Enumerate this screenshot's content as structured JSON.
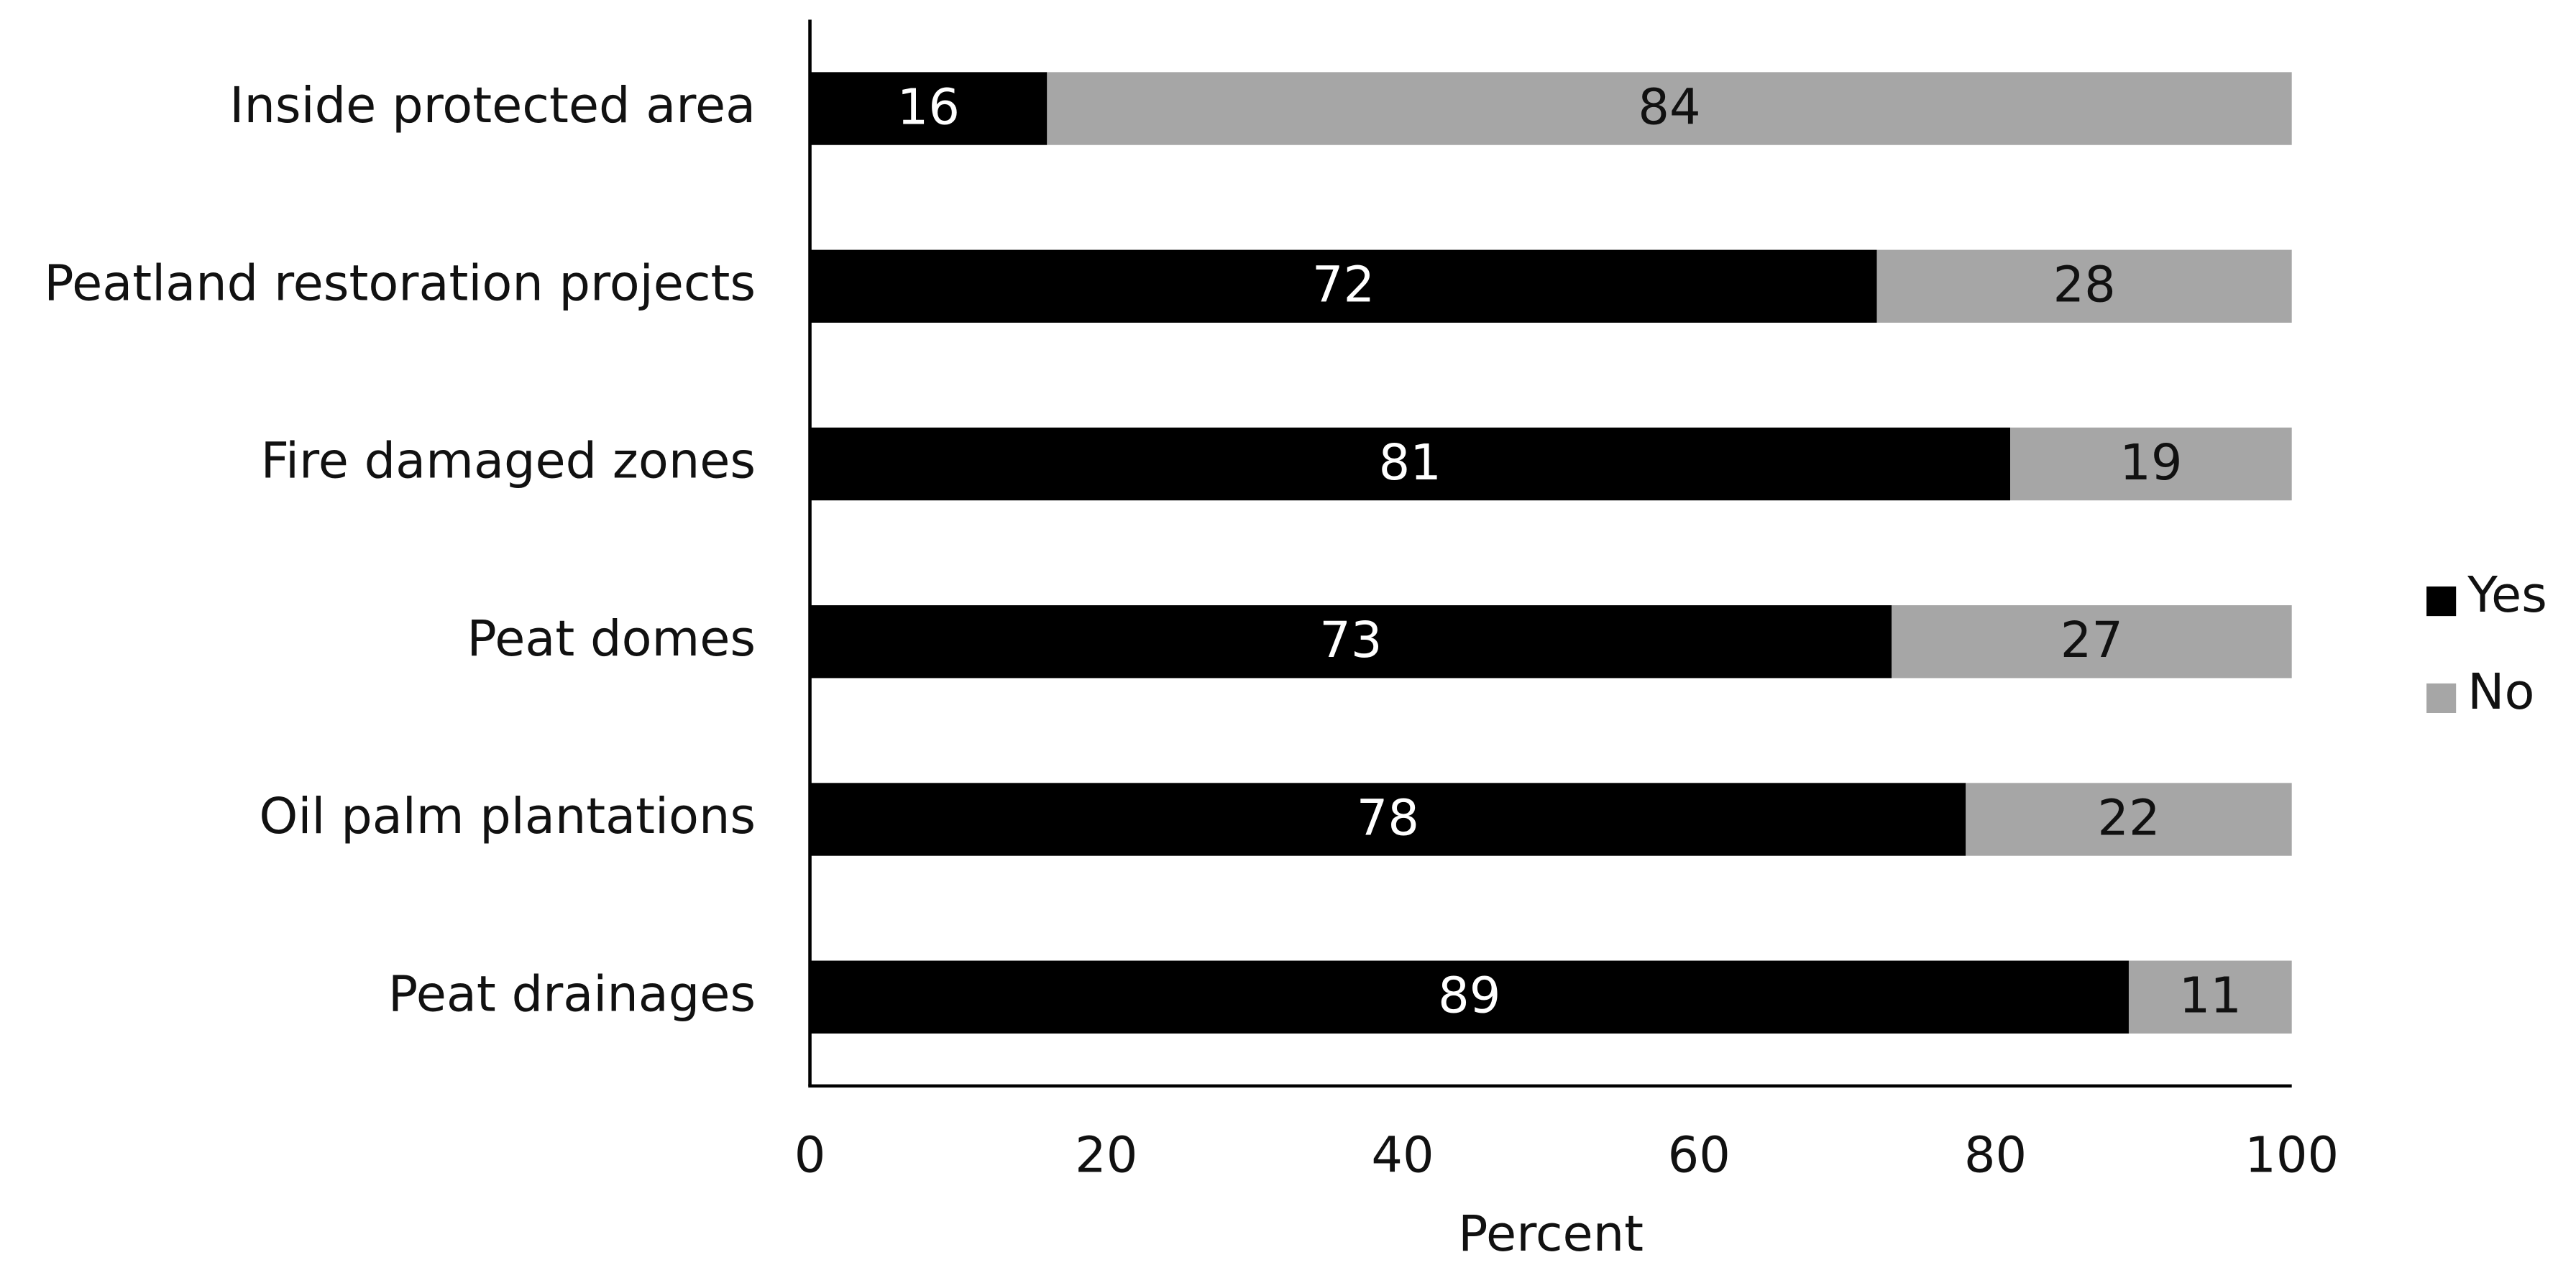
{
  "chart_data": {
    "type": "bar",
    "orientation": "horizontal",
    "stacked": true,
    "categories": [
      "Inside protected area",
      "Peatland restoration projects",
      "Fire damaged zones",
      "Peat domes",
      "Oil palm plantations",
      "Peat drainages"
    ],
    "series": [
      {
        "name": "Yes",
        "color": "#000000",
        "values": [
          16,
          72,
          81,
          73,
          78,
          89
        ]
      },
      {
        "name": "No",
        "color": "#a6a6a6",
        "values": [
          84,
          28,
          19,
          27,
          22,
          11
        ]
      }
    ],
    "x_label": "Percent",
    "xlim": [
      0,
      100
    ],
    "xticks": [
      0,
      20,
      40,
      60,
      80,
      100
    ],
    "legend": "right"
  }
}
